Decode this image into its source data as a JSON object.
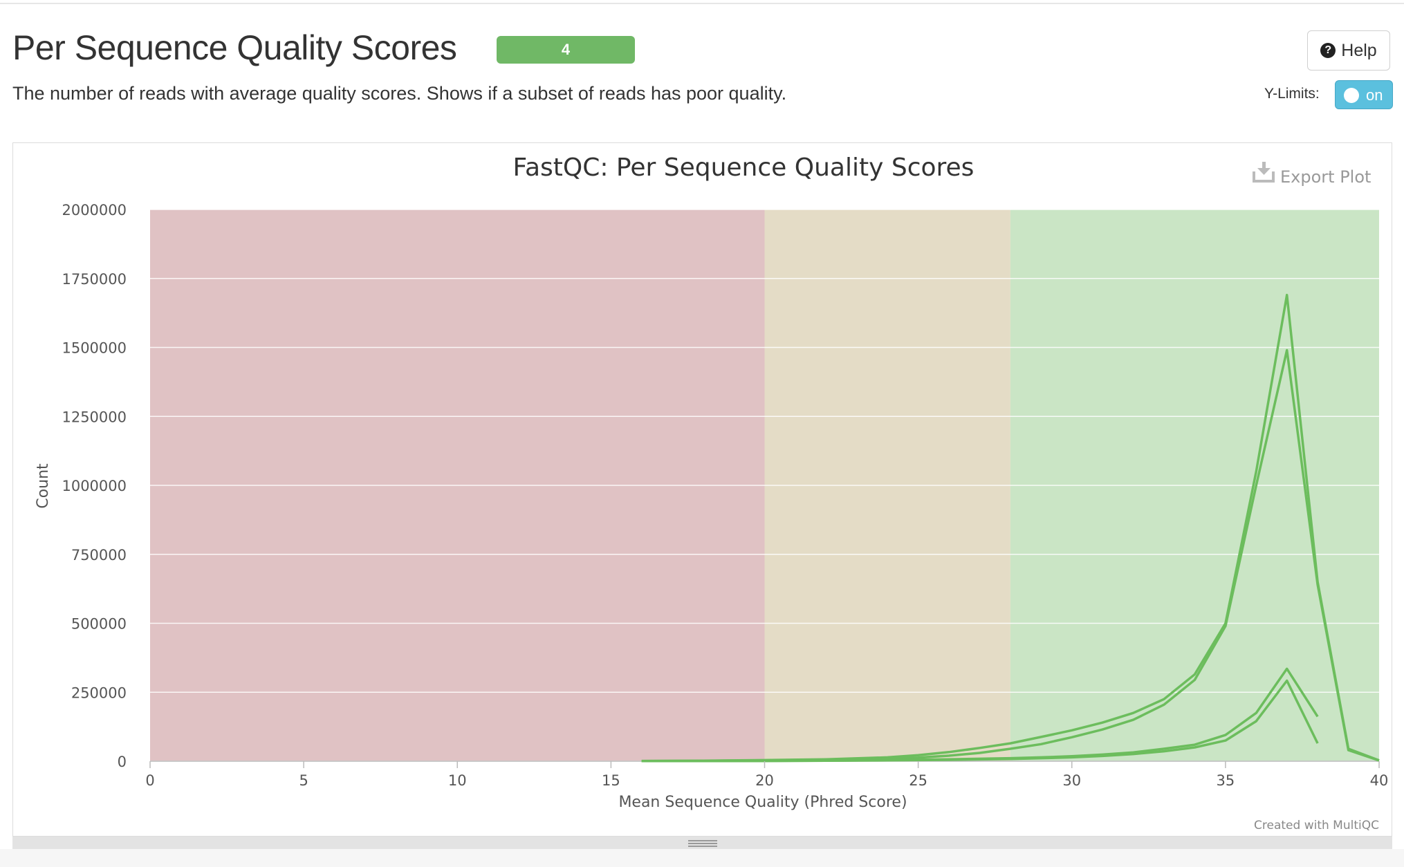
{
  "section": {
    "title": "Per Sequence Quality Scores",
    "badge": "4",
    "description": "The number of reads with average quality scores. Shows if a subset of reads has poor quality.",
    "help_label": "Help",
    "ylimits_label": "Y-Limits:",
    "ylimits_toggle": "on",
    "export_label": "Export Plot",
    "credit": "Created with MultiQC"
  },
  "colors": {
    "badge": "#70b866",
    "toggle": "#5bc0de",
    "band_fail": "#e0c2c4",
    "band_warn": "#e4dcc6",
    "band_pass": "#cae5c5",
    "line": "#6cbd5d"
  },
  "chart_data": {
    "type": "line",
    "title": "FastQC: Per Sequence Quality Scores",
    "xlabel": "Mean Sequence Quality (Phred Score)",
    "ylabel": "Count",
    "xlim": [
      0,
      40
    ],
    "ylim": [
      0,
      2000000
    ],
    "xticks": [
      0,
      5,
      10,
      15,
      20,
      25,
      30,
      35,
      40
    ],
    "yticks": [
      0,
      250000,
      500000,
      750000,
      1000000,
      1250000,
      1500000,
      1750000,
      2000000
    ],
    "grid": true,
    "bands": [
      {
        "from": 0,
        "to": 20,
        "status": "fail"
      },
      {
        "from": 20,
        "to": 28,
        "status": "warn"
      },
      {
        "from": 28,
        "to": 40,
        "status": "pass"
      }
    ],
    "series": [
      {
        "x": [
          16,
          18,
          20,
          22,
          24,
          25,
          26,
          27,
          28,
          29,
          30,
          31,
          32,
          33,
          34,
          35,
          36,
          37,
          38,
          39,
          40
        ],
        "values": [
          1000,
          2000,
          4000,
          7000,
          14000,
          22000,
          33000,
          48000,
          65000,
          88000,
          112000,
          140000,
          175000,
          225000,
          315000,
          500000,
          1050000,
          1690000,
          650000,
          45000,
          3000
        ]
      },
      {
        "x": [
          16,
          18,
          20,
          22,
          24,
          25,
          26,
          27,
          28,
          29,
          30,
          31,
          32,
          33,
          34,
          35,
          36,
          37,
          38,
          39,
          40
        ],
        "values": [
          800,
          1500,
          3000,
          5000,
          9000,
          13000,
          20000,
          30000,
          45000,
          62000,
          87000,
          115000,
          150000,
          205000,
          295000,
          490000,
          1000000,
          1490000,
          640000,
          40000,
          2500
        ]
      },
      {
        "x": [
          16,
          18,
          20,
          22,
          24,
          26,
          28,
          29,
          30,
          31,
          32,
          33,
          34,
          35,
          36,
          37,
          38
        ],
        "values": [
          500,
          800,
          1000,
          2000,
          4000,
          7000,
          11000,
          14000,
          18000,
          24000,
          32000,
          45000,
          60000,
          95000,
          175000,
          335000,
          162000
        ]
      },
      {
        "x": [
          16,
          18,
          20,
          22,
          24,
          26,
          28,
          29,
          30,
          31,
          32,
          33,
          34,
          35,
          36,
          37,
          38
        ],
        "values": [
          400,
          700,
          900,
          1700,
          3000,
          5000,
          8000,
          11000,
          14000,
          19000,
          26000,
          36000,
          50000,
          75000,
          145000,
          292000,
          65000
        ]
      }
    ]
  }
}
